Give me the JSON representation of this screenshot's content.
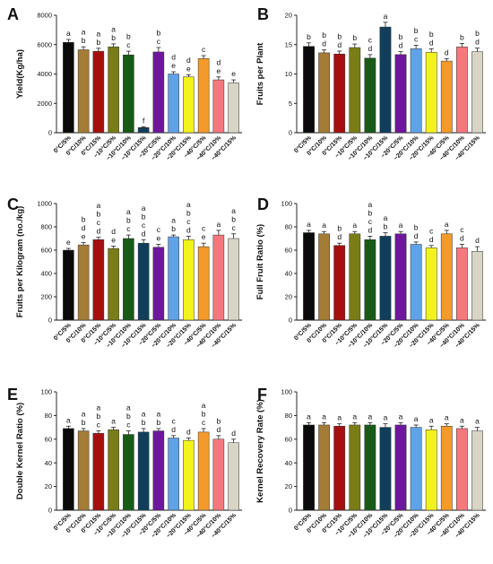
{
  "chart_data": [
    {
      "panel": "A",
      "type": "bar",
      "ylabel": "Yield(Kg/ha)",
      "ylim": [
        0,
        8000
      ],
      "yticks": [
        0,
        2000,
        4000,
        6000,
        8000
      ],
      "categories": [
        "0°C/5%",
        "0°C/10%",
        "0°C/15%",
        "−10°C/5%",
        "−10°C/10%",
        "−10°C/15%",
        "−20°C/5%",
        "−20°C/10%",
        "−20°C/15%",
        "−40°C/5%",
        "−40°C/10%",
        "−40°C/15%"
      ],
      "values": [
        6150,
        5650,
        5550,
        5850,
        5300,
        350,
        5500,
        4000,
        3800,
        5050,
        3600,
        3400
      ],
      "errors": [
        200,
        200,
        200,
        200,
        250,
        60,
        300,
        150,
        150,
        200,
        200,
        200
      ],
      "letters": [
        [
          "a"
        ],
        [
          "a",
          "b"
        ],
        [
          "a",
          "b"
        ],
        [
          "a",
          "b"
        ],
        [
          "b",
          "c"
        ],
        [
          "f"
        ],
        [
          "b",
          "c"
        ],
        [
          "d",
          "e"
        ],
        [
          "d",
          "e"
        ],
        [
          "c"
        ],
        [
          "d",
          "e"
        ],
        [
          "e"
        ]
      ]
    },
    {
      "panel": "B",
      "type": "bar",
      "ylabel": "Fruits per Plant",
      "ylim": [
        0,
        20
      ],
      "yticks": [
        0,
        5,
        10,
        15,
        20
      ],
      "categories": [
        "0°C/5%",
        "0°C/10%",
        "0°C/15%",
        "−10°C/5%",
        "−10°C/10%",
        "−10°C/15%",
        "−20°C/5%",
        "−20°C/10%",
        "−20°C/15%",
        "−40°C/5%",
        "−40°C/10%",
        "−40°C/15%"
      ],
      "values": [
        14.7,
        13.6,
        13.4,
        14.5,
        12.7,
        18.0,
        13.3,
        14.3,
        13.7,
        12.2,
        14.6,
        13.8
      ],
      "errors": [
        0.6,
        0.5,
        0.5,
        0.6,
        0.6,
        0.8,
        0.5,
        0.6,
        0.6,
        0.4,
        0.6,
        0.6
      ],
      "letters": [
        [
          "b"
        ],
        [
          "b",
          "d"
        ],
        [
          "b",
          "d"
        ],
        [
          "b"
        ],
        [
          "c",
          "d"
        ],
        [
          "a"
        ],
        [
          "b",
          "d"
        ],
        [
          "b",
          "c"
        ],
        [
          "b",
          "d"
        ],
        [
          "d"
        ],
        [
          "b"
        ],
        [
          "b",
          "d"
        ]
      ]
    },
    {
      "panel": "C",
      "type": "bar",
      "ylabel": "Fruits per Kilogram (no./kg)",
      "ylim": [
        0,
        1000
      ],
      "yticks": [
        0,
        200,
        400,
        600,
        800,
        1000
      ],
      "categories": [
        "0°C/5%",
        "0°C/10%",
        "0°C/15%",
        "−10°C/5%",
        "−10°C/10%",
        "−10°C/15%",
        "−20°C/5%",
        "−20°C/10%",
        "−20°C/15%",
        "−40°C/5%",
        "−40°C/10%",
        "−40°C/15%"
      ],
      "values": [
        600,
        645,
        690,
        615,
        700,
        660,
        625,
        715,
        690,
        630,
        730,
        700
      ],
      "errors": [
        15,
        20,
        20,
        20,
        30,
        30,
        25,
        15,
        30,
        30,
        40,
        40
      ],
      "letters": [
        [
          "e"
        ],
        [
          "b",
          "d",
          "e"
        ],
        [
          "a",
          "b",
          "c",
          "d"
        ],
        [
          "d",
          "e"
        ],
        [
          "a",
          "b",
          "c"
        ],
        [
          "a",
          "b",
          "c",
          "d"
        ],
        [
          "c",
          "e"
        ],
        [
          "a",
          "b"
        ],
        [
          "a",
          "b",
          "c",
          "d"
        ],
        [
          "c",
          "e"
        ],
        [
          "a"
        ],
        [
          "a",
          "b",
          "c"
        ]
      ]
    },
    {
      "panel": "D",
      "type": "bar",
      "ylabel": "Full Fruit Ratio (%)",
      "ylim": [
        0,
        100
      ],
      "yticks": [
        0,
        20,
        40,
        60,
        80,
        100
      ],
      "categories": [
        "0°C/5%",
        "0°C/10%",
        "0°C/15%",
        "−10°C/5%",
        "−10°C/10%",
        "−10°C/15%",
        "−20°C/5%",
        "−20°C/10%",
        "−20°C/15%",
        "−40°C/5%",
        "−40°C/10%",
        "−40°C/15%"
      ],
      "values": [
        75,
        74,
        64,
        74,
        69,
        72,
        74,
        65,
        62,
        74,
        62,
        59
      ],
      "errors": [
        2,
        2,
        2,
        2,
        3,
        3,
        2,
        2,
        2,
        3,
        3,
        4
      ],
      "letters": [
        [
          "a"
        ],
        [
          "a"
        ],
        [
          "b",
          "d"
        ],
        [
          "a"
        ],
        [
          "a",
          "b",
          "c",
          "d"
        ],
        [
          "a",
          "b"
        ],
        [
          "a"
        ],
        [
          "b",
          "d"
        ],
        [
          "c",
          "d"
        ],
        [
          "a"
        ],
        [
          "c",
          "d"
        ],
        [
          "d"
        ]
      ]
    },
    {
      "panel": "E",
      "type": "bar",
      "ylabel": "Double Kernel Ratio (%)",
      "ylim": [
        0,
        100
      ],
      "yticks": [
        0,
        20,
        40,
        60,
        80,
        100
      ],
      "categories": [
        "0°C/5%",
        "0°C/10%",
        "0°C/15%",
        "−10°C/5%",
        "−10°C/10%",
        "−10°C/15%",
        "−20°C/5%",
        "−20°C/10%",
        "−20°C/15%",
        "−40°C/5%",
        "−40°C/10%",
        "−40°C/15%"
      ],
      "values": [
        69,
        67,
        65,
        68,
        64,
        66,
        67,
        61,
        59,
        66,
        60,
        57
      ],
      "errors": [
        2,
        2,
        2,
        2,
        3,
        3,
        2,
        2,
        2,
        3,
        3,
        3
      ],
      "letters": [
        [
          "a"
        ],
        [
          "a",
          "b"
        ],
        [
          "a",
          "b",
          "c"
        ],
        [
          "a"
        ],
        [
          "a",
          "b",
          "c"
        ],
        [
          "a",
          "b"
        ],
        [
          "a",
          "b"
        ],
        [
          "c",
          "d"
        ],
        [
          "d"
        ],
        [
          "a",
          "b",
          "c"
        ],
        [
          "b",
          "d"
        ],
        [
          "d"
        ]
      ]
    },
    {
      "panel": "F",
      "type": "bar",
      "ylabel": "Kernel Recovery Rate (%)",
      "ylim": [
        0,
        100
      ],
      "yticks": [
        0,
        20,
        40,
        60,
        80,
        100
      ],
      "categories": [
        "0°C/5%",
        "0°C/10%",
        "0°C/15%",
        "−10°C/5%",
        "−10°C/10%",
        "−10°C/15%",
        "−20°C/5%",
        "−20°C/10%",
        "−20°C/15%",
        "−40°C/5%",
        "−40°C/10%",
        "−40°C/15%"
      ],
      "values": [
        72,
        72,
        71,
        72,
        72,
        70,
        72,
        70,
        68,
        71,
        69,
        67
      ],
      "errors": [
        2,
        2,
        2,
        2,
        2,
        3,
        2,
        2,
        3,
        2,
        2,
        3
      ],
      "letters": [
        [
          "a"
        ],
        [
          "a"
        ],
        [
          "a"
        ],
        [
          "a"
        ],
        [
          "a"
        ],
        [
          "a"
        ],
        [
          "a"
        ],
        [
          "a"
        ],
        [
          "a"
        ],
        [
          "a"
        ],
        [
          "a"
        ],
        [
          "a"
        ]
      ]
    }
  ],
  "bar_colors": [
    "#0a0a0a",
    "#a47c35",
    "#a5100f",
    "#7a7d16",
    "#175b17",
    "#113f5b",
    "#6e169c",
    "#5fa2e8",
    "#f2f21c",
    "#f39a2b",
    "#f5787c",
    "#d9d5c5"
  ]
}
